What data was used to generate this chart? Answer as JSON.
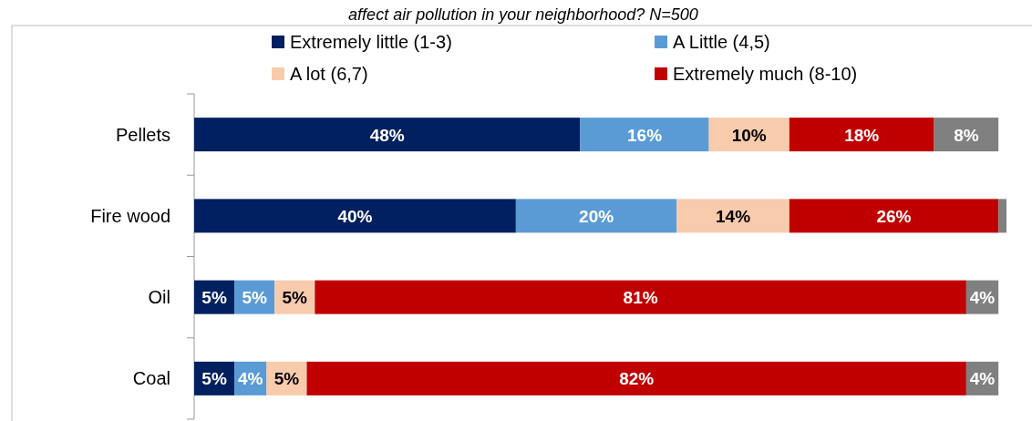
{
  "chart_data": {
    "type": "bar",
    "orientation": "horizontal",
    "stacked": true,
    "title": "affect air pollution in your neighborhood? N=500",
    "categories": [
      "Pellets",
      "Fire wood",
      "Oil",
      "Coal"
    ],
    "legend": "top",
    "series": [
      {
        "name": "Extremely little (1-3)",
        "color": "#002060",
        "values": [
          48,
          40,
          5,
          5
        ],
        "value_labels": [
          "48%",
          "40%",
          "5%",
          "5%"
        ]
      },
      {
        "name": "A Little (4,5)",
        "color": "#5b9bd5",
        "values": [
          16,
          20,
          5,
          4
        ],
        "value_labels": [
          "16%",
          "20%",
          "5%",
          "4%"
        ]
      },
      {
        "name": "A lot (6,7)",
        "color": "#f8cbad",
        "values": [
          10,
          14,
          5,
          5
        ],
        "value_labels": [
          "10%",
          "14%",
          "5%",
          "5%"
        ]
      },
      {
        "name": "Extremely much (8-10)",
        "color": "#c00000",
        "values": [
          18,
          26,
          81,
          82
        ],
        "value_labels": [
          "18%",
          "26%",
          "81%",
          "82%"
        ]
      },
      {
        "color": "#808080",
        "values": [
          8,
          1,
          4,
          4
        ],
        "value_labels": [
          "8%",
          null,
          "4%",
          "4%"
        ]
      }
    ]
  }
}
